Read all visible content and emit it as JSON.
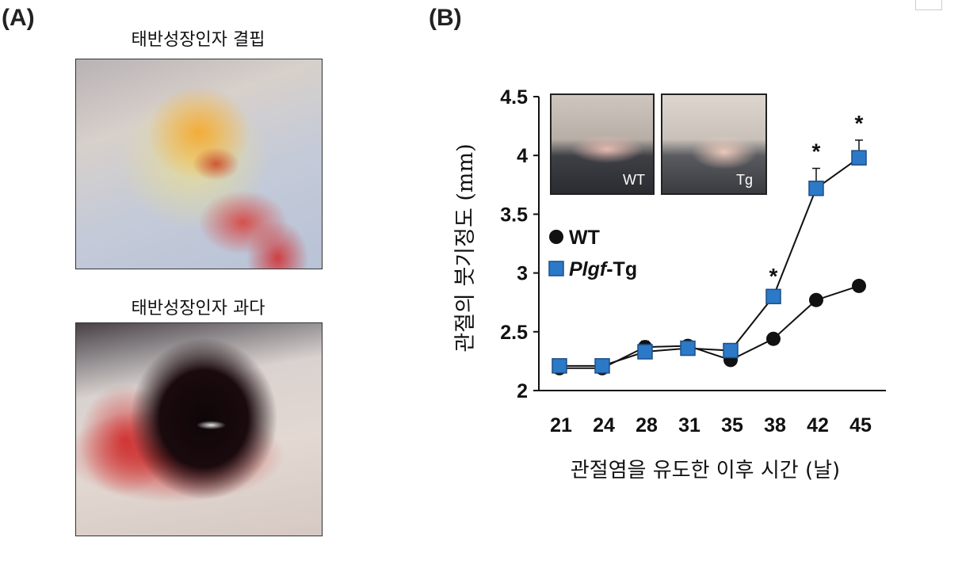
{
  "panel_a": {
    "letter": "(A)",
    "top_title": "태반성장인자 결핍",
    "bottom_title": "태반성장인자 과다"
  },
  "panel_b": {
    "letter": "(B)",
    "inset_labels": {
      "wt": "WT",
      "tg": "Tg"
    }
  },
  "colors": {
    "wt": "#111111",
    "tg": "#2c79c7",
    "tg_edge": "#1d4f86"
  },
  "chart_data": {
    "type": "line",
    "title": "",
    "xlabel": "관절염을 유도한 이후 시간 (날)",
    "ylabel": "관절의 붓기정도 (mm)",
    "categories": [
      "21",
      "24",
      "28",
      "31",
      "35",
      "38",
      "42",
      "45"
    ],
    "ylim": [
      2,
      4.5
    ],
    "yticks": [
      "2",
      "2.5",
      "3",
      "3.5",
      "4",
      "4.5"
    ],
    "grid": false,
    "legend_position": "middle-left",
    "series": [
      {
        "name": "WT",
        "name_italic": "",
        "name_suffix": "WT",
        "marker": "circle",
        "values": [
          2.19,
          2.19,
          2.37,
          2.38,
          2.26,
          2.44,
          2.77,
          2.89
        ],
        "errors": [
          0.02,
          0.02,
          0.03,
          0.02,
          0.02,
          0.02,
          0.02,
          0.02
        ]
      },
      {
        "name": "Plgf-Tg",
        "name_italic": "Plgf",
        "name_suffix": "-Tg",
        "marker": "square",
        "values": [
          2.21,
          2.21,
          2.33,
          2.36,
          2.34,
          2.8,
          3.72,
          3.98
        ],
        "errors": [
          0.02,
          0.02,
          0.09,
          0.03,
          0.02,
          0.03,
          0.17,
          0.15
        ]
      }
    ],
    "significance": [
      "",
      "",
      "",
      "",
      "",
      "*",
      "*",
      "*"
    ]
  }
}
